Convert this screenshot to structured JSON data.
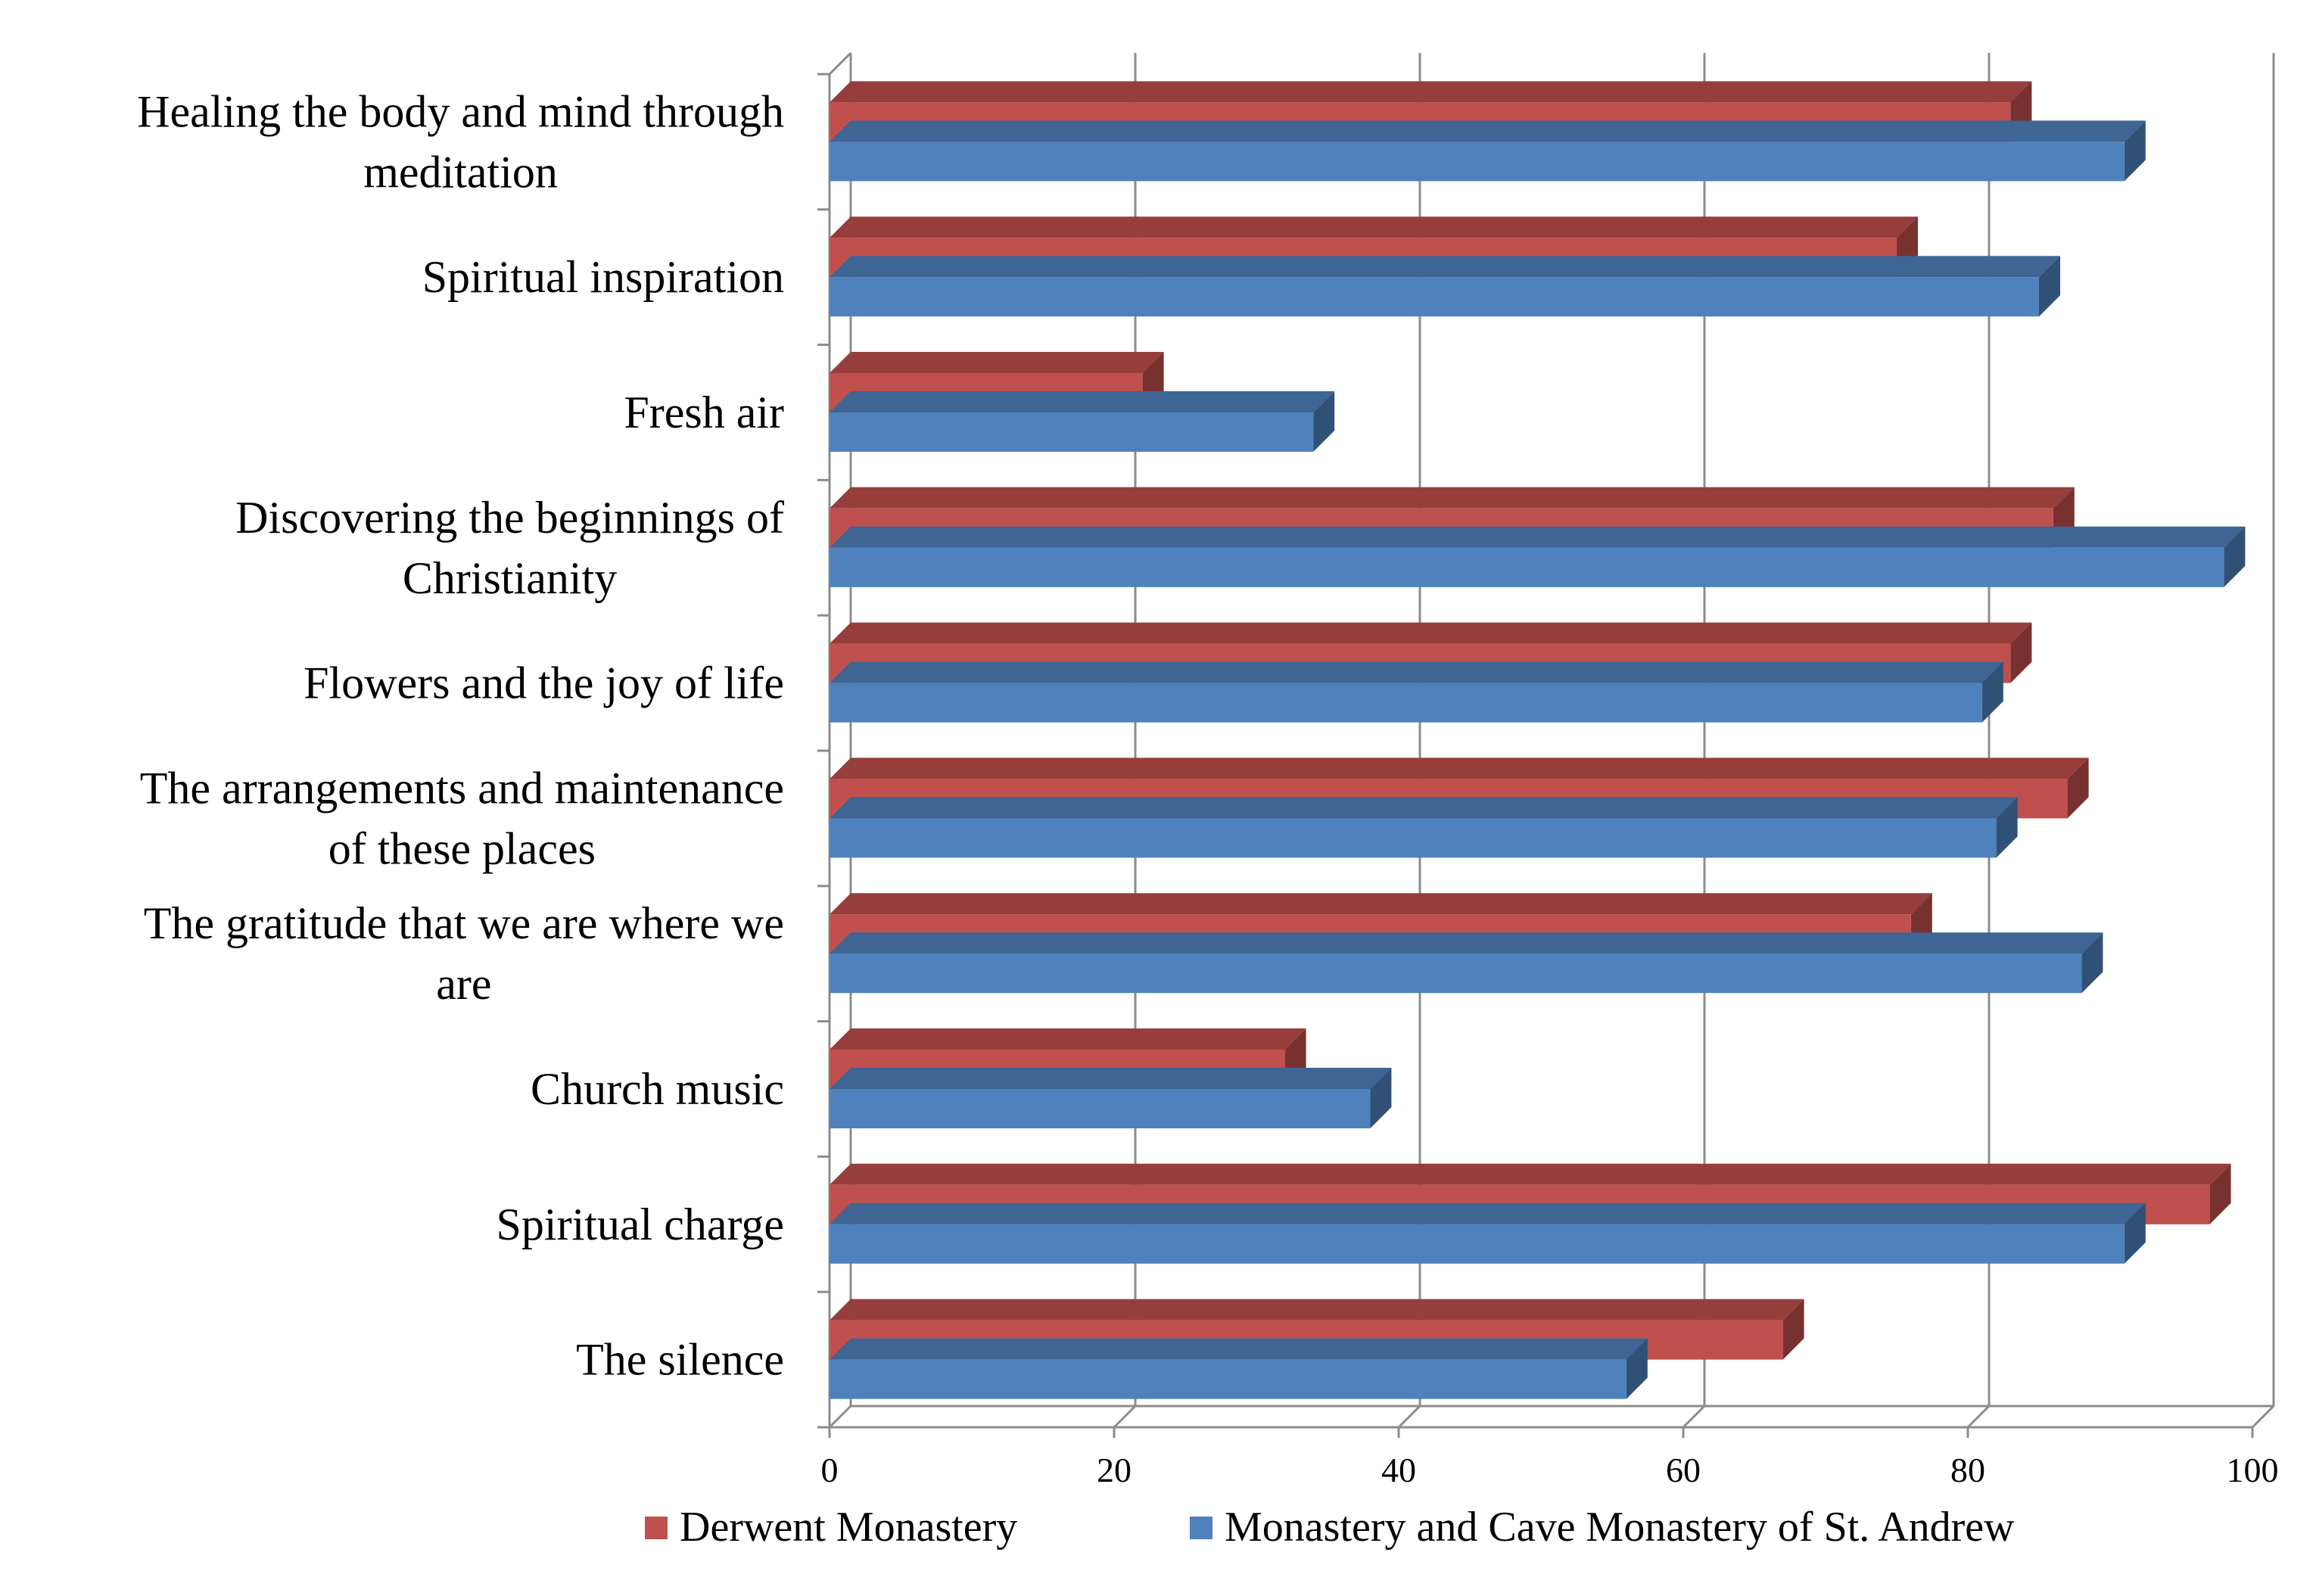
{
  "chart_data": {
    "type": "bar",
    "orientation": "horizontal",
    "style": "3d-clustered",
    "title": "",
    "xlabel": "",
    "ylabel": "",
    "xlim": [
      0,
      100
    ],
    "grid": true,
    "legend_position": "bottom",
    "x_ticks": [
      "0",
      "20",
      "40",
      "60",
      "80",
      "100"
    ],
    "categories": [
      "Healing the body and mind through meditation",
      "Spiritual inspiration",
      "Fresh air",
      "Discovering the beginnings of Christianity",
      "Flowers and the joy of life",
      "The arrangements and maintenance of these places",
      "The gratitude that we are where we are",
      "Church music",
      "Spiritual charge",
      "The silence"
    ],
    "category_label_lines": [
      [
        "Healing the body and mind through",
        "meditation"
      ],
      [
        "Spiritual inspiration"
      ],
      [
        "Fresh air"
      ],
      [
        "Discovering the beginnings of",
        "Christianity"
      ],
      [
        "Flowers and the joy of life"
      ],
      [
        "The arrangements and maintenance",
        "of these places"
      ],
      [
        "The gratitude that we are where we",
        "are"
      ],
      [
        "Church music"
      ],
      [
        "Spiritual charge"
      ],
      [
        "The silence"
      ]
    ],
    "series": [
      {
        "name": "Derwent Monastery",
        "color": "#C0504D",
        "values": [
          83,
          75,
          22,
          86,
          83,
          87,
          76,
          32,
          97,
          67
        ]
      },
      {
        "name": "Monastery and Cave Monastery of St. Andrew",
        "color": "#4F81BD",
        "values": [
          91,
          85,
          34,
          98,
          81,
          82,
          88,
          38,
          91,
          56
        ]
      }
    ]
  }
}
